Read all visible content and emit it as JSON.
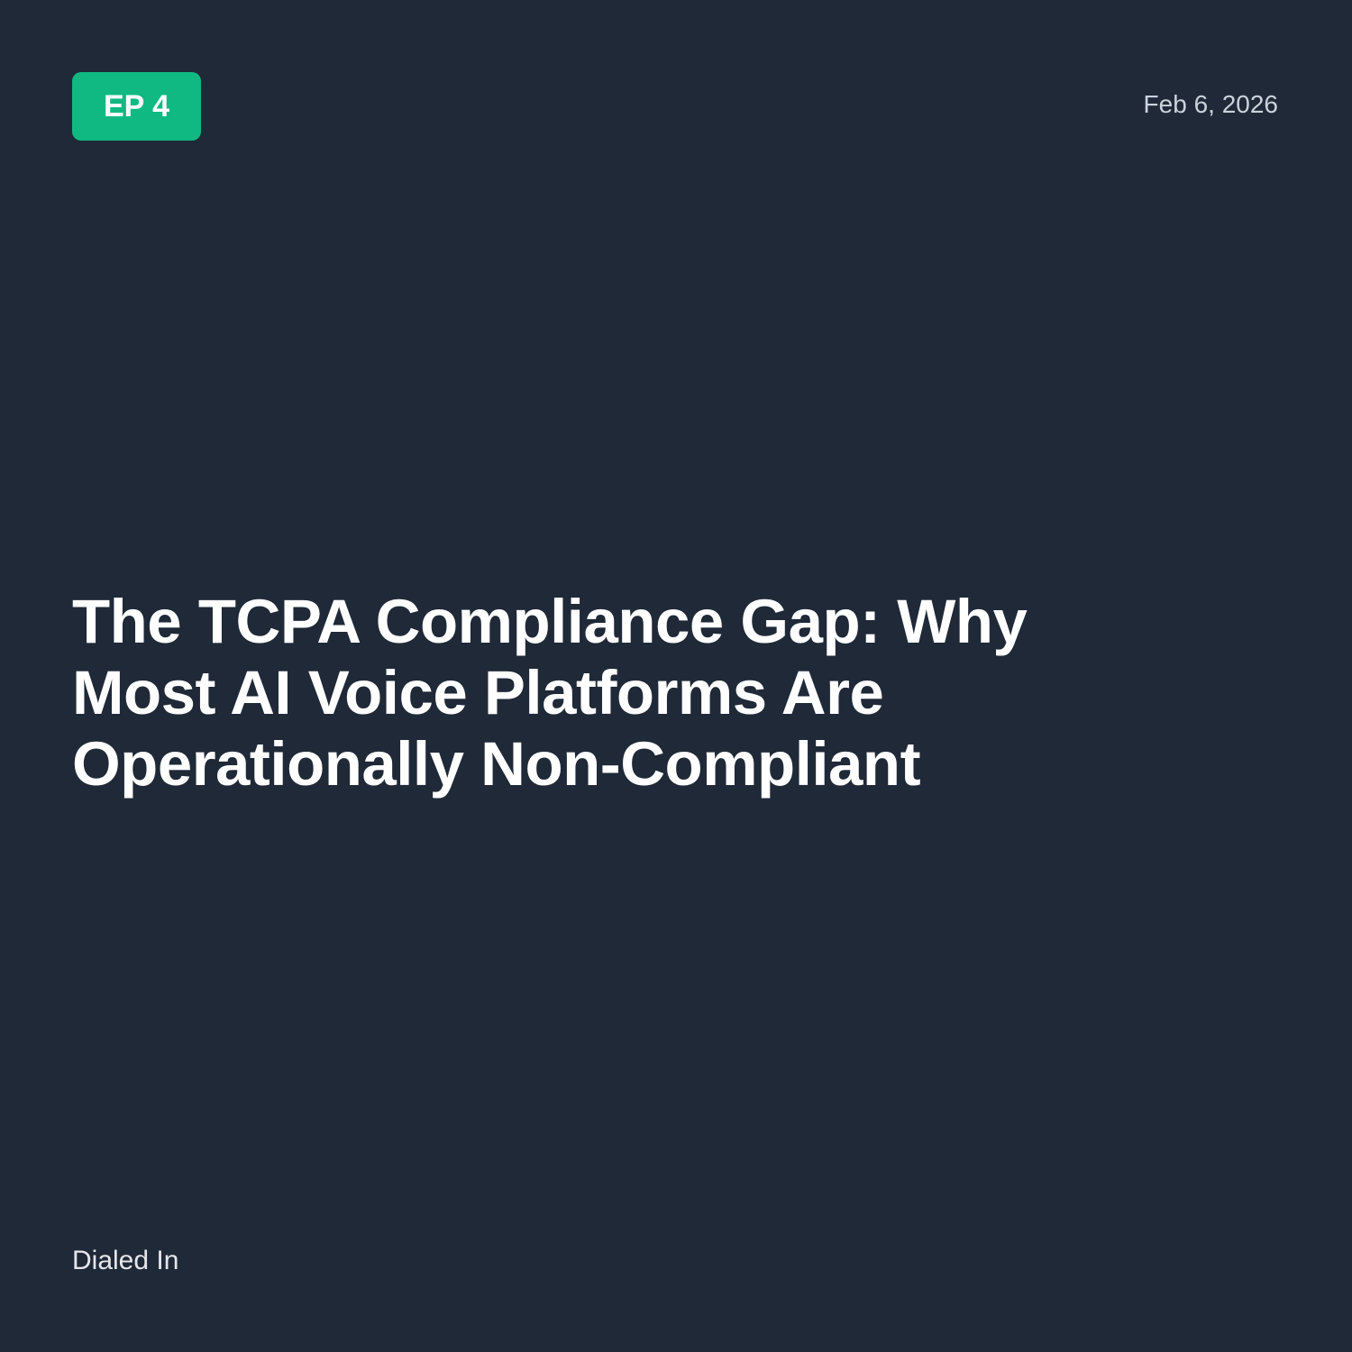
{
  "colors": {
    "background": "#1f2937",
    "accent": "#10b981"
  },
  "episode_badge": "EP 4",
  "date": "Feb 6, 2026",
  "title_lines": [
    "The TCPA Compliance Gap: Why",
    "Most AI Voice Platforms Are",
    "Operationally Non-Compliant"
  ],
  "brand": "Dialed In"
}
